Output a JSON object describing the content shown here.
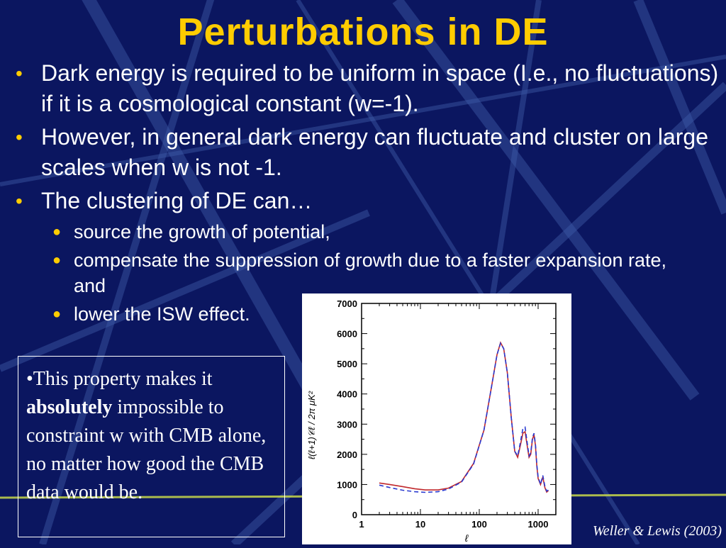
{
  "slide": {
    "title": "Perturbations in DE",
    "bullets": [
      {
        "text": "Dark energy is required to be uniform in space (I.e., no fluctuations) if it is a cosmological constant (w=-1)."
      },
      {
        "text": "However, in general dark energy can fluctuate and cluster on large scales when w is not -1."
      },
      {
        "text": "The clustering of DE can…"
      }
    ],
    "sub_bullets": [
      {
        "text": "source the growth of potential,"
      },
      {
        "text": "compensate the suppression of growth due to a faster expansion rate, and"
      },
      {
        "text": "lower the ISW effect."
      }
    ],
    "textbox": {
      "part1": "•This property makes it ",
      "bold": "absolutely",
      "part2": " impossible to constraint w with CMB alone, no matter how good the CMB data would be."
    },
    "credit": "Weller & Lewis (2003)"
  },
  "colors": {
    "background": "#0b1660",
    "title": "#ffcc00",
    "bullet": "#ffcc00",
    "text": "#ffffff"
  },
  "chart_data": {
    "type": "line",
    "xlabel": "ℓ",
    "ylabel": "ℓ(ℓ+1)𝒞ℓ / 2π  μK²",
    "xscale": "log",
    "xlim": [
      1,
      2000
    ],
    "ylim": [
      0,
      7000
    ],
    "x_ticks": [
      "1",
      "10",
      "100",
      "1000"
    ],
    "y_ticks": [
      "0",
      "1000",
      "2000",
      "3000",
      "4000",
      "5000",
      "6000",
      "7000"
    ],
    "series": [
      {
        "color": "#c0282c",
        "dash": "solid",
        "points": [
          [
            2,
            1050
          ],
          [
            3,
            1000
          ],
          [
            5,
            930
          ],
          [
            8,
            860
          ],
          [
            12,
            820
          ],
          [
            20,
            820
          ],
          [
            30,
            880
          ],
          [
            50,
            1100
          ],
          [
            80,
            1700
          ],
          [
            120,
            2800
          ],
          [
            160,
            4200
          ],
          [
            200,
            5300
          ],
          [
            230,
            5700
          ],
          [
            260,
            5500
          ],
          [
            300,
            4700
          ],
          [
            350,
            3200
          ],
          [
            400,
            2100
          ],
          [
            450,
            1900
          ],
          [
            500,
            2300
          ],
          [
            550,
            2700
          ],
          [
            600,
            2750
          ],
          [
            650,
            2300
          ],
          [
            700,
            1900
          ],
          [
            750,
            2000
          ],
          [
            800,
            2500
          ],
          [
            850,
            2650
          ],
          [
            900,
            2300
          ],
          [
            950,
            1600
          ],
          [
            1000,
            1200
          ],
          [
            1100,
            1000
          ],
          [
            1200,
            1250
          ],
          [
            1300,
            900
          ],
          [
            1400,
            750
          ],
          [
            1500,
            800
          ]
        ]
      },
      {
        "color": "#2a3ad0",
        "dash": "dashed",
        "points": [
          [
            2,
            980
          ],
          [
            3,
            900
          ],
          [
            5,
            810
          ],
          [
            8,
            760
          ],
          [
            12,
            740
          ],
          [
            20,
            760
          ],
          [
            30,
            850
          ],
          [
            50,
            1080
          ],
          [
            80,
            1680
          ],
          [
            120,
            2800
          ],
          [
            160,
            4200
          ],
          [
            200,
            5300
          ],
          [
            230,
            5680
          ],
          [
            260,
            5500
          ],
          [
            300,
            4700
          ],
          [
            350,
            3200
          ],
          [
            400,
            2100
          ],
          [
            450,
            1950
          ],
          [
            500,
            2400
          ],
          [
            550,
            2850
          ],
          [
            600,
            2900
          ],
          [
            650,
            2400
          ],
          [
            700,
            1950
          ],
          [
            750,
            2050
          ],
          [
            800,
            2550
          ],
          [
            850,
            2700
          ],
          [
            900,
            2350
          ],
          [
            950,
            1650
          ],
          [
            1000,
            1250
          ],
          [
            1100,
            1000
          ],
          [
            1200,
            1300
          ],
          [
            1300,
            950
          ],
          [
            1400,
            780
          ],
          [
            1500,
            820
          ]
        ]
      }
    ]
  }
}
